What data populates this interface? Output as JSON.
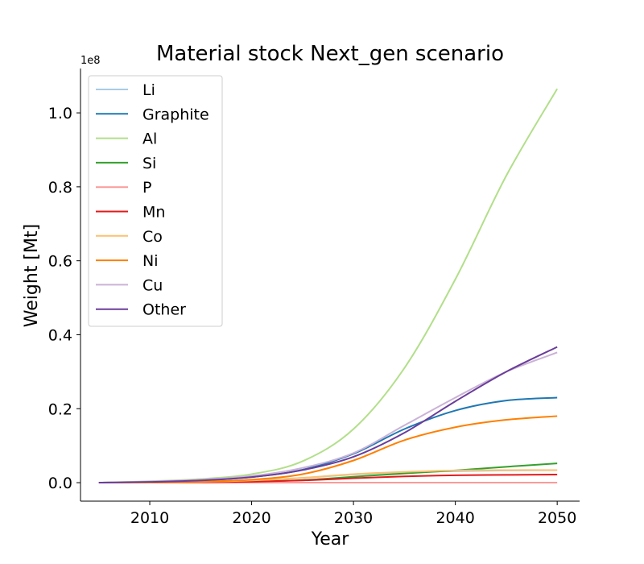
{
  "chart_data": {
    "type": "line",
    "title": "Material stock Next_gen scenario",
    "xlabel": "Year",
    "ylabel": "Weight [Mt]",
    "y_offset_label": "1e8",
    "y_scale": 100000000,
    "xlim": [
      2003.2,
      2052.2
    ],
    "ylim": [
      -5000000,
      112000000
    ],
    "x_ticks": [
      2010,
      2020,
      2030,
      2040,
      2050
    ],
    "y_ticks": [
      0.0,
      0.2,
      0.4,
      0.6,
      0.8,
      1.0
    ],
    "y_tick_labels": [
      "0.0",
      "0.2",
      "0.4",
      "0.6",
      "0.8",
      "1.0"
    ],
    "legend_position": "top-left",
    "x": [
      2005,
      2010,
      2015,
      2020,
      2025,
      2030,
      2035,
      2040,
      2045,
      2050
    ],
    "series": [
      {
        "name": "Li",
        "color": "#a6cee3",
        "values": [
          0,
          50000,
          200000,
          600000,
          1300000,
          2200000,
          2800000,
          3100000,
          3300000,
          3400000
        ]
      },
      {
        "name": "Graphite",
        "color": "#1f78b4",
        "values": [
          0,
          200000,
          600000,
          1500000,
          3500000,
          7800000,
          14500000,
          19500000,
          22200000,
          23000000
        ]
      },
      {
        "name": "Al",
        "color": "#b2df8a",
        "values": [
          0,
          400000,
          1000000,
          2300000,
          5800000,
          14500000,
          31000000,
          55000000,
          83000000,
          106500000
        ]
      },
      {
        "name": "Si",
        "color": "#33a02c",
        "values": [
          0,
          30000,
          100000,
          300000,
          700000,
          1600000,
          2500000,
          3300000,
          4300000,
          5200000
        ]
      },
      {
        "name": "P",
        "color": "#fb9a99",
        "values": [
          0,
          0,
          0,
          0,
          0,
          0,
          0,
          0,
          0,
          0
        ]
      },
      {
        "name": "Mn",
        "color": "#e31a1c",
        "values": [
          0,
          20000,
          80000,
          250000,
          600000,
          1200000,
          1700000,
          2000000,
          2100000,
          2200000
        ]
      },
      {
        "name": "Co",
        "color": "#fdbf6f",
        "values": [
          0,
          50000,
          200000,
          600000,
          1300000,
          2300000,
          2900000,
          3300000,
          3400000,
          3400000
        ]
      },
      {
        "name": "Ni",
        "color": "#ff7f00",
        "values": [
          0,
          100000,
          300000,
          800000,
          2300000,
          6000000,
          11500000,
          15000000,
          17000000,
          18000000
        ]
      },
      {
        "name": "Cu",
        "color": "#cab2d6",
        "values": [
          0,
          300000,
          800000,
          1800000,
          4000000,
          8000000,
          15500000,
          23000000,
          30000000,
          35200000
        ]
      },
      {
        "name": "Other",
        "color": "#6a3d9a",
        "values": [
          0,
          200000,
          600000,
          1500000,
          3400000,
          7000000,
          13500000,
          22000000,
          30000000,
          36700000
        ]
      }
    ]
  }
}
